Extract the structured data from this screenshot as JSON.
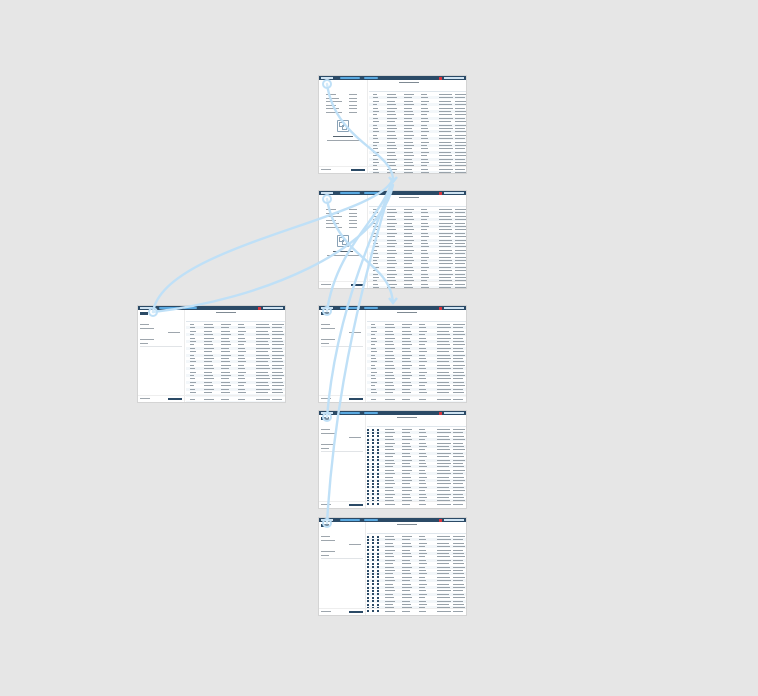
{
  "canvas": {
    "background": "#e6e6e6",
    "flow_color": "#bfe0f7",
    "accent": "#2b4a66",
    "highlight": "#5aa9e0"
  },
  "screens": [
    {
      "id": "screen-1",
      "variant": "empty-state",
      "rows": 25,
      "checkboxes": false
    },
    {
      "id": "screen-2",
      "variant": "empty-state",
      "rows": 25,
      "checkboxes": false
    },
    {
      "id": "screen-3",
      "variant": "filters",
      "rows": 24,
      "checkboxes": false
    },
    {
      "id": "screen-4",
      "variant": "filters",
      "rows": 24,
      "checkboxes": false
    },
    {
      "id": "screen-5",
      "variant": "selected",
      "rows": 23,
      "checkboxes": true
    },
    {
      "id": "screen-6",
      "variant": "selected",
      "rows": 23,
      "checkboxes": true
    }
  ],
  "flows": [
    {
      "from": "screen-1",
      "to": "screen-2"
    },
    {
      "from": "screen-2",
      "to": "screen-3"
    },
    {
      "from": "screen-2",
      "to": "screen-4"
    },
    {
      "from": "screen-3",
      "to": "screen-1"
    },
    {
      "from": "screen-4",
      "to": "screen-1"
    },
    {
      "from": "screen-5",
      "to": "screen-1"
    },
    {
      "from": "screen-6",
      "to": "screen-1"
    }
  ],
  "icons": {
    "hotspot": "hotspot-circle-icon",
    "empty_state": "empty-grid-icon",
    "brand": "brand-mark-icon"
  }
}
